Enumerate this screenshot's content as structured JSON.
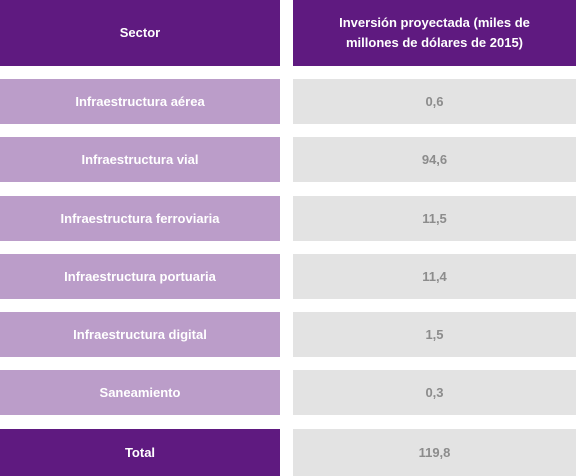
{
  "table": {
    "headers": {
      "sector": "Sector",
      "investment": "Inversión proyectada (miles de millones de dólares de 2015)"
    },
    "rows": [
      {
        "sector": "Infraestructura aérea",
        "value": "0,6"
      },
      {
        "sector": "Infraestructura vial",
        "value": "94,6"
      },
      {
        "sector": "Infraestructura ferroviaria",
        "value": "11,5"
      },
      {
        "sector": "Infraestructura portuaria",
        "value": "11,4"
      },
      {
        "sector": "Infraestructura digital",
        "value": "1,5"
      },
      {
        "sector": "Saneamiento",
        "value": "0,3"
      }
    ],
    "total": {
      "label": "Total",
      "value": "119,8"
    }
  },
  "colors": {
    "header_bg": "#5f1a80",
    "sector_bg": "#bb9dc9",
    "value_bg": "#e3e3e3",
    "value_text": "#8c8c8c"
  }
}
